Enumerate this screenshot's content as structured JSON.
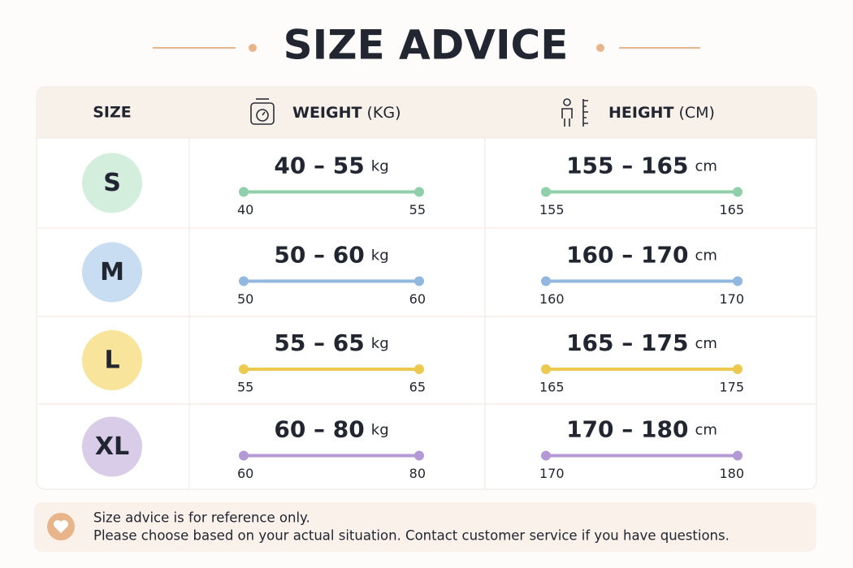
{
  "title": "SIZE ADVICE",
  "table": {
    "headers": [
      {
        "label": "SIZE"
      },
      {
        "label": "WEIGHT",
        "unit": "(KG)"
      },
      {
        "label": "HEIGHT",
        "unit": "(CM)"
      }
    ],
    "rows": [
      {
        "size": "S",
        "circle_color": "#d3eedd",
        "bar_color": "#8fcfa9",
        "weight": {
          "range": "40 – 55",
          "unit": "kg",
          "min": 40,
          "max": 55
        },
        "height": {
          "range": "155 – 165",
          "unit": "cm",
          "min": 155,
          "max": 165
        }
      },
      {
        "size": "M",
        "circle_color": "#c8dcf2",
        "bar_color": "#92b8e0",
        "weight": {
          "range": "50 – 60",
          "unit": "kg",
          "min": 50,
          "max": 60
        },
        "height": {
          "range": "160 – 170",
          "unit": "cm",
          "min": 160,
          "max": 170
        }
      },
      {
        "size": "L",
        "circle_color": "#f8e49a",
        "bar_color": "#ecc94f",
        "weight": {
          "range": "55 – 65",
          "unit": "kg",
          "min": 55,
          "max": 65
        },
        "height": {
          "range": "165 – 175",
          "unit": "cm",
          "min": 165,
          "max": 175
        }
      },
      {
        "size": "XL",
        "circle_color": "#d8cce8",
        "bar_color": "#b49ad4",
        "weight": {
          "range": "60 – 80",
          "unit": "kg",
          "min": 60,
          "max": 80
        },
        "height": {
          "range": "170 – 180",
          "unit": "cm",
          "min": 170,
          "max": 180
        }
      }
    ]
  },
  "note": {
    "lines": [
      "Size advice is for reference only.",
      "Please choose based on your actual situation. Contact customer service if you have questions."
    ]
  }
}
